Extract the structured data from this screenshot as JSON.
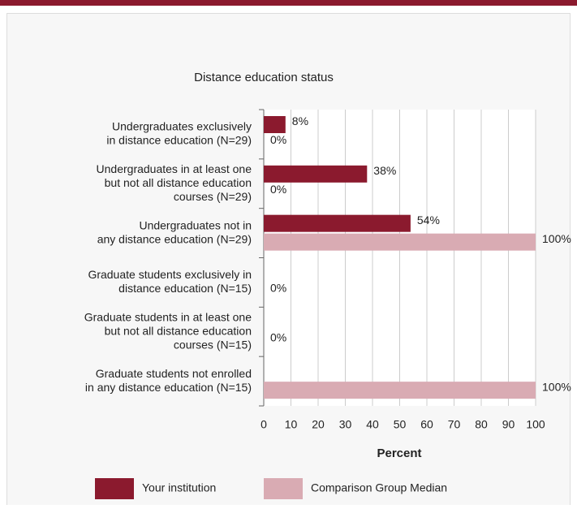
{
  "chart_data": {
    "type": "barh",
    "title": "Distance education status",
    "categories": [
      [
        "Undergraduates exclusively",
        "in distance education (N=29)"
      ],
      [
        "Undergraduates in at least one",
        "but not all distance education",
        "courses (N=29)"
      ],
      [
        "Undergraduates not in",
        "any distance education (N=29)"
      ],
      [
        "Graduate students exclusively in",
        "distance education (N=15)"
      ],
      [
        "Graduate students in at least one",
        "but not all distance education",
        "courses (N=15)"
      ],
      [
        "Graduate students not enrolled",
        "in any distance education (N=15)"
      ]
    ],
    "series": [
      {
        "name": "Your institution",
        "color": "#8b1a2e",
        "values": [
          8,
          38,
          54,
          null,
          null,
          null
        ],
        "value_labels": [
          "8%",
          "38%",
          "54%",
          null,
          null,
          null
        ]
      },
      {
        "name": "Comparison Group Median",
        "color": "#d9abb3",
        "values": [
          0,
          0,
          100,
          0,
          0,
          100
        ],
        "value_labels": [
          "0%",
          "0%",
          "100%",
          "0%",
          "0%",
          "100%"
        ]
      }
    ],
    "xlabel": "Percent",
    "xlim": [
      0,
      100
    ],
    "xticks": [
      0,
      10,
      20,
      30,
      40,
      50,
      60,
      70,
      80,
      90,
      100
    ],
    "grid": true,
    "legend": "bottom"
  }
}
